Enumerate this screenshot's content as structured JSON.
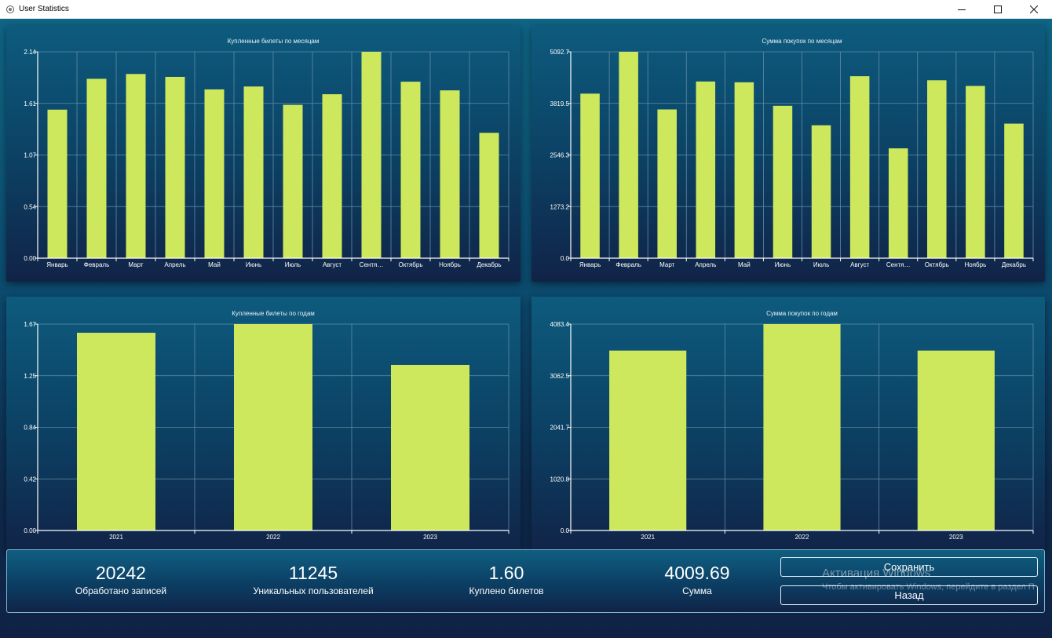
{
  "window": {
    "title": "User Statistics",
    "controls": {
      "minimize": "—",
      "maximize": "☐",
      "close": "✕"
    }
  },
  "colors": {
    "bar": "#cde85d",
    "grid": "#5f8ca6",
    "axis": "#ffffff"
  },
  "chart_data": [
    {
      "type": "bar",
      "title": "Купленные билеты по месяцам",
      "categories": [
        "Январь",
        "Февраль",
        "Март",
        "Апрель",
        "Май",
        "Июнь",
        "Июль",
        "Август",
        "Сентя…",
        "Октябрь",
        "Ноябрь",
        "Декабрь"
      ],
      "values": [
        1.54,
        1.86,
        1.91,
        1.88,
        1.75,
        1.78,
        1.59,
        1.7,
        2.14,
        1.83,
        1.74,
        1.3
      ],
      "ylim": [
        0,
        2.14
      ],
      "yticks": [
        "0.00",
        "0.54",
        "1.07",
        "1.61",
        "2.14"
      ],
      "grid": true
    },
    {
      "type": "bar",
      "title": "Сумма покупок по месяцам",
      "categories": [
        "Январь",
        "Февраль",
        "Март",
        "Апрель",
        "Май",
        "Июнь",
        "Июль",
        "Август",
        "Сентя…",
        "Октябрь",
        "Ноябрь",
        "Декабрь"
      ],
      "values": [
        4060,
        5092.7,
        3670,
        4360,
        4340,
        3760,
        3280,
        4490,
        2710,
        4390,
        4250,
        3320
      ],
      "ylim": [
        0,
        5092.7
      ],
      "yticks": [
        "0.0",
        "1273.2",
        "2546.3",
        "3819.5",
        "5092.7"
      ],
      "grid": true
    },
    {
      "type": "bar",
      "title": "Купленные билеты по годам",
      "categories": [
        "2021",
        "2022",
        "2023"
      ],
      "values": [
        1.6,
        1.67,
        1.34
      ],
      "ylim": [
        0,
        1.67
      ],
      "yticks": [
        "0.00",
        "0.42",
        "0.84",
        "1.25",
        "1.67"
      ],
      "grid": true
    },
    {
      "type": "bar",
      "title": "Сумма покупок по годам",
      "categories": [
        "2021",
        "2022",
        "2023"
      ],
      "values": [
        3560,
        4083.4,
        3560
      ],
      "ylim": [
        0,
        4083.4
      ],
      "yticks": [
        "0.0",
        "1020.8",
        "2041.7",
        "3062.5",
        "4083.4"
      ],
      "grid": true
    }
  ],
  "stats": [
    {
      "value": "20242",
      "label": "Обработано записей"
    },
    {
      "value": "11245",
      "label": "Уникальных пользователей"
    },
    {
      "value": "1.60",
      "label": "Куплено билетов"
    },
    {
      "value": "4009.69",
      "label": "Сумма"
    }
  ],
  "buttons": {
    "save": "Сохранить",
    "back": "Назад"
  },
  "watermark": {
    "title": "Активация Windows",
    "text": "Чтобы активировать Windows, перейдите в раздел П"
  }
}
